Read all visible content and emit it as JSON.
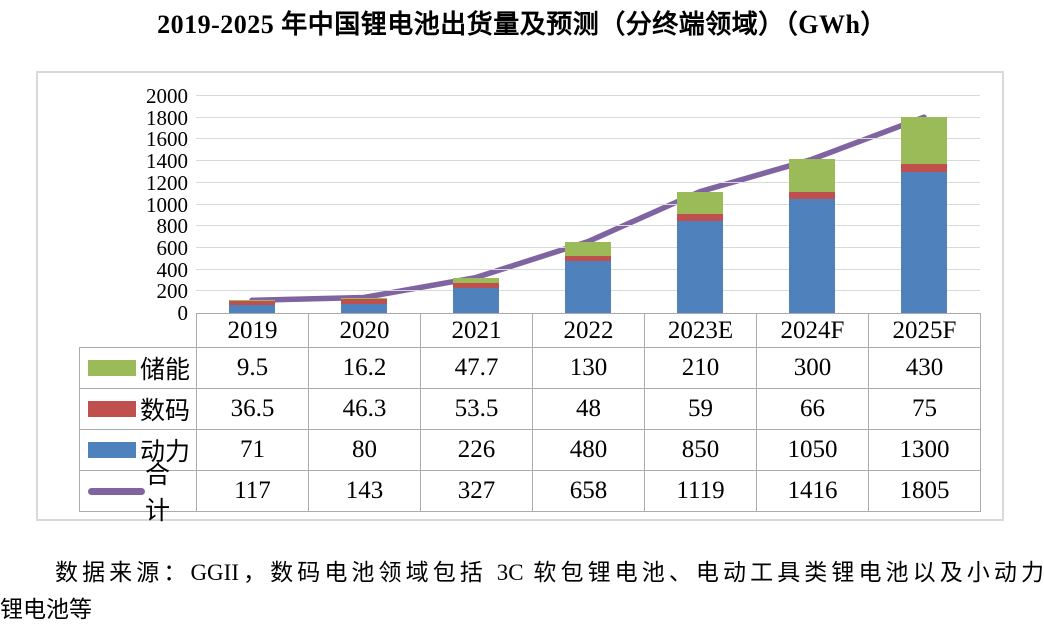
{
  "title": "2019-2025 年中国锂电池出货量及预测（分终端领域）（GWh）",
  "chart_data": {
    "type": "bar",
    "subtype": "stacked-bars-with-total-line",
    "title": "2019-2025 年中国锂电池出货量及预测（分终端领域）（GWh）",
    "categories": [
      "2019",
      "2020",
      "2021",
      "2022",
      "2023E",
      "2024F",
      "2025F"
    ],
    "series": [
      {
        "key": "storage",
        "name": "储能",
        "type": "bar",
        "color": "#9BBB59",
        "values": [
          9.5,
          16.2,
          47.7,
          130,
          210,
          300,
          430
        ]
      },
      {
        "key": "digital",
        "name": "数码",
        "type": "bar",
        "color": "#C0504D",
        "values": [
          36.5,
          46.3,
          53.5,
          48,
          59,
          66,
          75
        ]
      },
      {
        "key": "power",
        "name": "动力",
        "type": "bar",
        "color": "#4F81BD",
        "values": [
          71,
          80,
          226,
          480,
          850,
          1050,
          1300
        ]
      },
      {
        "key": "total",
        "name": "合计",
        "type": "line",
        "color": "#8064A2",
        "values": [
          117,
          143,
          327,
          658,
          1119,
          1416,
          1805
        ]
      }
    ],
    "stack_order_bottom_to_top": [
      "power",
      "digital",
      "storage"
    ],
    "table_row_order": [
      "storage",
      "digital",
      "power",
      "total"
    ],
    "xlabel": "",
    "ylabel": "",
    "ylim": [
      0,
      2000
    ],
    "ytick_step": 200,
    "yticks": [
      0,
      200,
      400,
      600,
      800,
      1000,
      1200,
      1400,
      1600,
      1800,
      2000
    ],
    "grid": "horizontal",
    "legend_position": "table-left-column"
  },
  "source_note": {
    "line1": "数据来源：GGII，数码电池领域包括 3C 软包锂电池、电动工具类锂电池以及小动力",
    "line2": "锂电池等"
  }
}
